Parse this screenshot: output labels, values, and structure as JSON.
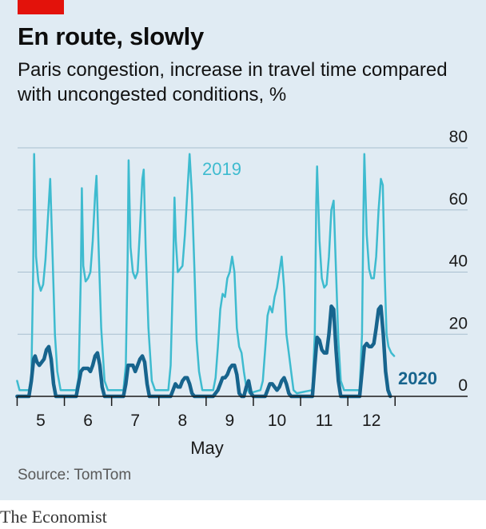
{
  "header": {
    "title": "En route, slowly",
    "subtitle": "Paris congestion, increase in travel time compared with uncongested conditions, %"
  },
  "footer": {
    "source": "Source: TomTom",
    "brand": "The Economist"
  },
  "colors": {
    "accent_red": "#e3120b",
    "series_2019": "#3ebbcf",
    "series_2020": "#17648d",
    "background": "#e0ebf3",
    "grid": "#a9bfcf"
  },
  "chart_data": {
    "type": "line",
    "xlabel": "May",
    "ylabel": "",
    "ylim": [
      0,
      80
    ],
    "yticks": [
      0,
      20,
      40,
      60,
      80
    ],
    "ytick_labels": [
      "0",
      "20",
      "40",
      "60",
      "80"
    ],
    "xlim": [
      4.5,
      12.75
    ],
    "xticks": [
      5,
      6,
      7,
      8,
      9,
      10,
      11,
      12
    ],
    "xtick_labels": [
      "5",
      "6",
      "7",
      "8",
      "9",
      "10",
      "11",
      "12"
    ],
    "grid": true,
    "series": [
      {
        "name": "2019",
        "points": [
          [
            4.5,
            5
          ],
          [
            4.55,
            2
          ],
          [
            4.75,
            2
          ],
          [
            4.8,
            6
          ],
          [
            4.84,
            40
          ],
          [
            4.86,
            78
          ],
          [
            4.9,
            45
          ],
          [
            4.95,
            37
          ],
          [
            5.0,
            34
          ],
          [
            5.05,
            36
          ],
          [
            5.1,
            44
          ],
          [
            5.17,
            62
          ],
          [
            5.2,
            70
          ],
          [
            5.25,
            45
          ],
          [
            5.3,
            20
          ],
          [
            5.35,
            8
          ],
          [
            5.42,
            2
          ],
          [
            5.75,
            2
          ],
          [
            5.8,
            6
          ],
          [
            5.85,
            40
          ],
          [
            5.87,
            67
          ],
          [
            5.9,
            42
          ],
          [
            5.95,
            37
          ],
          [
            6.0,
            38
          ],
          [
            6.05,
            40
          ],
          [
            6.1,
            50
          ],
          [
            6.15,
            65
          ],
          [
            6.18,
            71
          ],
          [
            6.22,
            50
          ],
          [
            6.28,
            22
          ],
          [
            6.35,
            5
          ],
          [
            6.42,
            2
          ],
          [
            6.75,
            2
          ],
          [
            6.8,
            10
          ],
          [
            6.84,
            45
          ],
          [
            6.86,
            76
          ],
          [
            6.9,
            48
          ],
          [
            6.95,
            40
          ],
          [
            7.0,
            38
          ],
          [
            7.05,
            40
          ],
          [
            7.1,
            54
          ],
          [
            7.15,
            70
          ],
          [
            7.18,
            73
          ],
          [
            7.22,
            48
          ],
          [
            7.28,
            22
          ],
          [
            7.35,
            5
          ],
          [
            7.42,
            2
          ],
          [
            7.7,
            2
          ],
          [
            7.75,
            10
          ],
          [
            7.8,
            40
          ],
          [
            7.83,
            64
          ],
          [
            7.86,
            50
          ],
          [
            7.9,
            40
          ],
          [
            7.95,
            41
          ],
          [
            8.0,
            42
          ],
          [
            8.05,
            52
          ],
          [
            8.1,
            65
          ],
          [
            8.15,
            78
          ],
          [
            8.2,
            65
          ],
          [
            8.25,
            42
          ],
          [
            8.3,
            18
          ],
          [
            8.35,
            8
          ],
          [
            8.42,
            2
          ],
          [
            8.65,
            2
          ],
          [
            8.7,
            6
          ],
          [
            8.75,
            16
          ],
          [
            8.8,
            28
          ],
          [
            8.85,
            33
          ],
          [
            8.9,
            32
          ],
          [
            8.95,
            38
          ],
          [
            9.0,
            40
          ],
          [
            9.05,
            45
          ],
          [
            9.1,
            40
          ],
          [
            9.15,
            22
          ],
          [
            9.2,
            16
          ],
          [
            9.25,
            14
          ],
          [
            9.3,
            8
          ],
          [
            9.35,
            3
          ],
          [
            9.42,
            1
          ],
          [
            9.65,
            2
          ],
          [
            9.7,
            5
          ],
          [
            9.75,
            15
          ],
          [
            9.8,
            26
          ],
          [
            9.85,
            29
          ],
          [
            9.9,
            27
          ],
          [
            9.95,
            32
          ],
          [
            10.0,
            35
          ],
          [
            10.05,
            40
          ],
          [
            10.1,
            45
          ],
          [
            10.15,
            35
          ],
          [
            10.2,
            20
          ],
          [
            10.25,
            14
          ],
          [
            10.3,
            8
          ],
          [
            10.35,
            2
          ],
          [
            10.42,
            1
          ],
          [
            10.75,
            2
          ],
          [
            10.8,
            20
          ],
          [
            10.83,
            62
          ],
          [
            10.85,
            74
          ],
          [
            10.9,
            50
          ],
          [
            10.95,
            38
          ],
          [
            11.0,
            35
          ],
          [
            11.05,
            36
          ],
          [
            11.1,
            45
          ],
          [
            11.15,
            60
          ],
          [
            11.2,
            63
          ],
          [
            11.25,
            40
          ],
          [
            11.3,
            18
          ],
          [
            11.35,
            5
          ],
          [
            11.42,
            2
          ],
          [
            11.75,
            2
          ],
          [
            11.8,
            20
          ],
          [
            11.83,
            60
          ],
          [
            11.85,
            78
          ],
          [
            11.9,
            52
          ],
          [
            11.95,
            41
          ],
          [
            12.0,
            38
          ],
          [
            12.05,
            38
          ],
          [
            12.1,
            45
          ],
          [
            12.15,
            60
          ],
          [
            12.2,
            70
          ],
          [
            12.24,
            68
          ],
          [
            12.28,
            40
          ],
          [
            12.32,
            20
          ],
          [
            12.36,
            16
          ],
          [
            12.42,
            14
          ],
          [
            12.48,
            13
          ]
        ]
      },
      {
        "name": "2020",
        "points": [
          [
            4.5,
            0
          ],
          [
            4.6,
            0
          ],
          [
            4.75,
            0
          ],
          [
            4.8,
            5
          ],
          [
            4.85,
            12
          ],
          [
            4.88,
            13
          ],
          [
            4.92,
            11
          ],
          [
            4.97,
            10
          ],
          [
            5.02,
            11
          ],
          [
            5.07,
            12
          ],
          [
            5.12,
            15
          ],
          [
            5.17,
            16
          ],
          [
            5.22,
            12
          ],
          [
            5.27,
            4
          ],
          [
            5.32,
            0
          ],
          [
            5.75,
            0
          ],
          [
            5.8,
            4
          ],
          [
            5.85,
            8
          ],
          [
            5.9,
            9
          ],
          [
            5.95,
            9
          ],
          [
            6.0,
            9
          ],
          [
            6.05,
            8
          ],
          [
            6.1,
            10
          ],
          [
            6.15,
            13
          ],
          [
            6.2,
            14
          ],
          [
            6.25,
            10
          ],
          [
            6.3,
            3
          ],
          [
            6.35,
            0
          ],
          [
            6.75,
            0
          ],
          [
            6.8,
            4
          ],
          [
            6.85,
            10
          ],
          [
            6.9,
            10
          ],
          [
            6.95,
            10
          ],
          [
            7.0,
            8
          ],
          [
            7.05,
            10
          ],
          [
            7.1,
            12
          ],
          [
            7.15,
            13
          ],
          [
            7.2,
            11
          ],
          [
            7.25,
            4
          ],
          [
            7.3,
            0
          ],
          [
            7.75,
            0
          ],
          [
            7.8,
            2
          ],
          [
            7.85,
            4
          ],
          [
            7.9,
            3
          ],
          [
            7.95,
            3
          ],
          [
            8.0,
            5
          ],
          [
            8.05,
            6
          ],
          [
            8.1,
            6
          ],
          [
            8.15,
            4
          ],
          [
            8.2,
            1
          ],
          [
            8.25,
            0
          ],
          [
            8.65,
            0
          ],
          [
            8.75,
            2
          ],
          [
            8.8,
            4
          ],
          [
            8.85,
            6
          ],
          [
            8.9,
            6
          ],
          [
            8.95,
            7
          ],
          [
            9.0,
            9
          ],
          [
            9.05,
            10
          ],
          [
            9.1,
            10
          ],
          [
            9.15,
            7
          ],
          [
            9.2,
            1
          ],
          [
            9.25,
            0
          ],
          [
            9.3,
            0
          ],
          [
            9.35,
            3
          ],
          [
            9.4,
            5
          ],
          [
            9.45,
            1
          ],
          [
            9.5,
            0
          ],
          [
            9.75,
            0
          ],
          [
            9.8,
            2
          ],
          [
            9.85,
            4
          ],
          [
            9.9,
            4
          ],
          [
            9.95,
            3
          ],
          [
            10.0,
            2
          ],
          [
            10.05,
            3
          ],
          [
            10.1,
            5
          ],
          [
            10.15,
            6
          ],
          [
            10.2,
            4
          ],
          [
            10.25,
            1
          ],
          [
            10.3,
            0
          ],
          [
            10.75,
            0
          ],
          [
            10.8,
            10
          ],
          [
            10.85,
            19
          ],
          [
            10.9,
            18
          ],
          [
            10.95,
            15
          ],
          [
            11.0,
            14
          ],
          [
            11.05,
            14
          ],
          [
            11.1,
            20
          ],
          [
            11.15,
            29
          ],
          [
            11.2,
            28
          ],
          [
            11.25,
            15
          ],
          [
            11.3,
            5
          ],
          [
            11.35,
            0
          ],
          [
            11.75,
            0
          ],
          [
            11.8,
            8
          ],
          [
            11.85,
            16
          ],
          [
            11.9,
            17
          ],
          [
            11.95,
            16
          ],
          [
            12.0,
            16
          ],
          [
            12.05,
            17
          ],
          [
            12.1,
            22
          ],
          [
            12.15,
            28
          ],
          [
            12.2,
            29
          ],
          [
            12.25,
            20
          ],
          [
            12.3,
            8
          ],
          [
            12.35,
            2
          ],
          [
            12.4,
            0
          ]
        ]
      }
    ],
    "series_labels": [
      "2019",
      "2020"
    ]
  }
}
